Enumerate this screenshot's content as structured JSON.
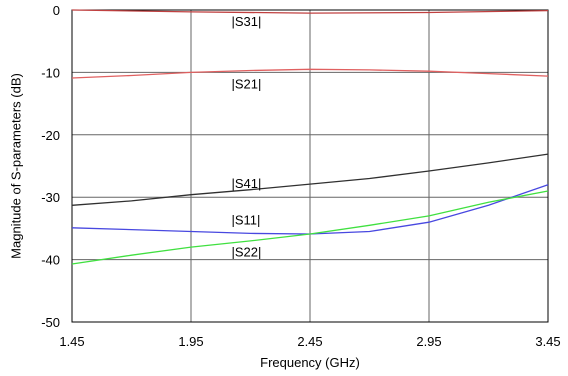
{
  "chart_data": {
    "type": "line",
    "xlabel": "Frequency (GHz)",
    "ylabel": "Magnitude of S-parameters (dB)",
    "xlim": [
      1.45,
      3.45
    ],
    "ylim": [
      -50,
      0
    ],
    "xticks": [
      1.45,
      1.95,
      2.45,
      2.95,
      3.45
    ],
    "xtick_labels": [
      "1.45",
      "1.95",
      "2.45",
      "2.95",
      "3.45"
    ],
    "yticks": [
      0,
      -10,
      -20,
      -30,
      -40,
      -50
    ],
    "ytick_labels": [
      "0",
      "-10",
      "-20",
      "-30",
      "-40",
      "-50"
    ],
    "grid": true,
    "series": [
      {
        "name": "|S31|",
        "color": "#c04040",
        "x": [
          1.45,
          1.95,
          2.45,
          2.95,
          3.45
        ],
        "y": [
          0.0,
          -0.3,
          -0.5,
          -0.4,
          -0.1
        ]
      },
      {
        "name": "|S21|",
        "color": "#e06060",
        "x": [
          1.45,
          1.7,
          1.95,
          2.2,
          2.45,
          2.7,
          2.95,
          3.2,
          3.45
        ],
        "y": [
          -10.9,
          -10.5,
          -10.0,
          -9.7,
          -9.5,
          -9.6,
          -9.8,
          -10.2,
          -10.6
        ]
      },
      {
        "name": "|S41|",
        "color": "#303030",
        "x": [
          1.45,
          1.7,
          1.95,
          2.2,
          2.45,
          2.7,
          2.95,
          3.2,
          3.45
        ],
        "y": [
          -31.3,
          -30.6,
          -29.6,
          -28.8,
          -27.9,
          -27.0,
          -25.8,
          -24.5,
          -23.1
        ]
      },
      {
        "name": "|S11|",
        "color": "#4848e0",
        "x": [
          1.45,
          1.7,
          1.95,
          2.2,
          2.45,
          2.7,
          2.95,
          3.2,
          3.45
        ],
        "y": [
          -34.9,
          -35.2,
          -35.5,
          -35.8,
          -35.9,
          -35.5,
          -34.0,
          -31.3,
          -28.0
        ]
      },
      {
        "name": "|S22|",
        "color": "#40e040",
        "x": [
          1.45,
          1.7,
          1.95,
          2.2,
          2.45,
          2.7,
          2.95,
          3.2,
          3.45
        ],
        "y": [
          -40.7,
          -39.3,
          -38.0,
          -37.0,
          -35.9,
          -34.5,
          -33.0,
          -30.8,
          -29.0
        ]
      }
    ],
    "labels": [
      {
        "text": "|S31|",
        "x": 2.12,
        "y": -1.8
      },
      {
        "text": "|S21|",
        "x": 2.12,
        "y": -11.8
      },
      {
        "text": "|S41|",
        "x": 2.12,
        "y": -27.7
      },
      {
        "text": "|S11|",
        "x": 2.12,
        "y": -33.6
      },
      {
        "text": "|S22|",
        "x": 2.12,
        "y": -38.7
      }
    ]
  }
}
